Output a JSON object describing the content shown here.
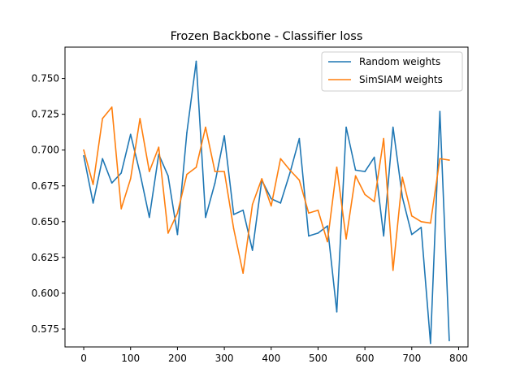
{
  "chart_data": {
    "type": "line",
    "title": "Frozen Backbone - Classifier loss",
    "xlabel": "",
    "ylabel": "",
    "xlim": [
      -40,
      820
    ],
    "ylim": [
      0.5625,
      0.7719
    ],
    "xticks": [
      0,
      100,
      200,
      300,
      400,
      500,
      600,
      700,
      800
    ],
    "yticks": [
      0.575,
      0.6,
      0.625,
      0.65,
      0.675,
      0.7,
      0.725,
      0.75
    ],
    "ytick_labels": [
      "0.575",
      "0.600",
      "0.625",
      "0.650",
      "0.675",
      "0.700",
      "0.725",
      "0.750"
    ],
    "grid": false,
    "legend": "top-right",
    "x": [
      0,
      20,
      40,
      60,
      80,
      100,
      120,
      140,
      160,
      180,
      200,
      220,
      240,
      260,
      280,
      300,
      320,
      340,
      360,
      380,
      400,
      420,
      440,
      460,
      480,
      500,
      520,
      540,
      560,
      580,
      600,
      620,
      640,
      660,
      680,
      700,
      720,
      740,
      760,
      780
    ],
    "series": [
      {
        "name": "Random weights",
        "color": "#1f77b4",
        "values": [
          0.696,
          0.663,
          0.694,
          0.677,
          0.684,
          0.711,
          0.684,
          0.653,
          0.697,
          0.682,
          0.641,
          0.712,
          0.762,
          0.653,
          0.677,
          0.71,
          0.655,
          0.658,
          0.63,
          0.679,
          0.666,
          0.663,
          0.684,
          0.708,
          0.64,
          0.642,
          0.647,
          0.587,
          0.716,
          0.686,
          0.685,
          0.695,
          0.64,
          0.716,
          0.667,
          0.641,
          0.646,
          0.565,
          0.727,
          0.567
        ]
      },
      {
        "name": "SimSIAM weights",
        "color": "#ff7f0e",
        "values": [
          0.7,
          0.676,
          0.722,
          0.73,
          0.659,
          0.68,
          0.722,
          0.685,
          0.702,
          0.642,
          0.656,
          0.683,
          0.688,
          0.716,
          0.685,
          0.685,
          0.645,
          0.614,
          0.662,
          0.68,
          0.661,
          0.694,
          0.686,
          0.679,
          0.656,
          0.658,
          0.636,
          0.688,
          0.638,
          0.682,
          0.669,
          0.664,
          0.708,
          0.616,
          0.681,
          0.654,
          0.65,
          0.649,
          0.694,
          0.693
        ]
      }
    ]
  }
}
